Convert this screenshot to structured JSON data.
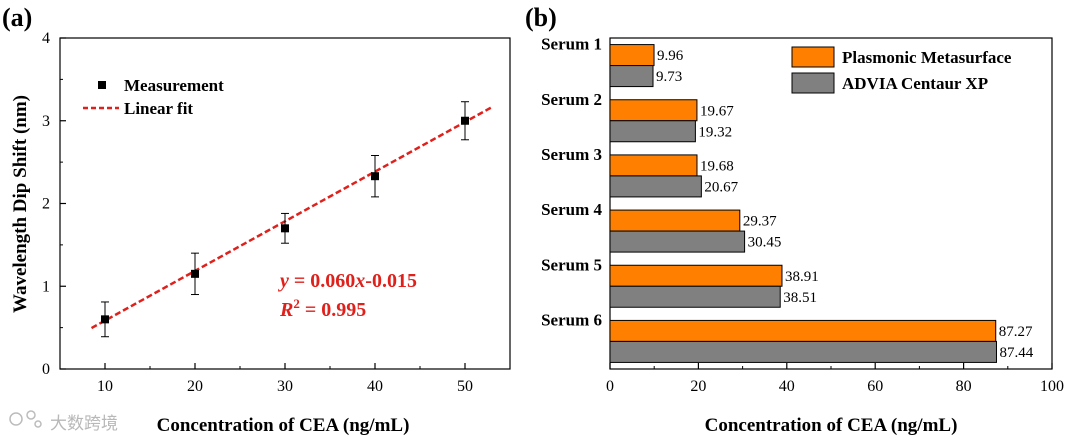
{
  "watermark": "大数跨境",
  "colors": {
    "fit_line": "#e0201b",
    "series1": "#ff8000",
    "series2": "#808080",
    "axis": "#000000"
  },
  "chart_data": [
    {
      "panel": "(a)",
      "type": "scatter",
      "xlabel": "Concentration of CEA (ng/mL)",
      "ylabel": "Wavelength Dip Shift (nm)",
      "xlim": [
        5,
        55
      ],
      "ylim": [
        0,
        4
      ],
      "xticks": [
        10,
        20,
        30,
        40,
        50
      ],
      "yticks": [
        0,
        1,
        2,
        3,
        4
      ],
      "legend_position": "top-left",
      "series": [
        {
          "name": "Measurement",
          "x": [
            10,
            20,
            30,
            40,
            50
          ],
          "y": [
            0.6,
            1.15,
            1.7,
            2.33,
            3.0
          ],
          "yerr": [
            0.21,
            0.25,
            0.18,
            0.25,
            0.23
          ]
        }
      ],
      "fit": {
        "name": "Linear fit",
        "slope": 0.06,
        "intercept": -0.015,
        "x_range": [
          8.5,
          53
        ]
      },
      "annotation": {
        "eq_y": "y",
        "eq_mid": " = 0.060",
        "eq_x": "x",
        "eq_tail": "-0.015",
        "r_letter": "R",
        "r_sup": "2",
        "r_tail": " = 0.995"
      }
    },
    {
      "panel": "(b)",
      "type": "bar",
      "orientation": "horizontal",
      "xlabel": "Concentration of CEA (ng/mL)",
      "xlim": [
        0,
        100
      ],
      "xticks": [
        0,
        20,
        40,
        60,
        80,
        100
      ],
      "legend_position": "top-right",
      "categories": [
        "Serum 1",
        "Serum 2",
        "Serum 3",
        "Serum 4",
        "Serum 5",
        "Serum 6"
      ],
      "series": [
        {
          "name": "Plasmonic Metasurface",
          "values": [
            9.96,
            19.67,
            19.68,
            29.37,
            38.91,
            87.27
          ]
        },
        {
          "name": "ADVIA Centaur XP",
          "values": [
            9.73,
            19.32,
            20.67,
            30.45,
            38.51,
            87.44
          ]
        }
      ]
    }
  ]
}
